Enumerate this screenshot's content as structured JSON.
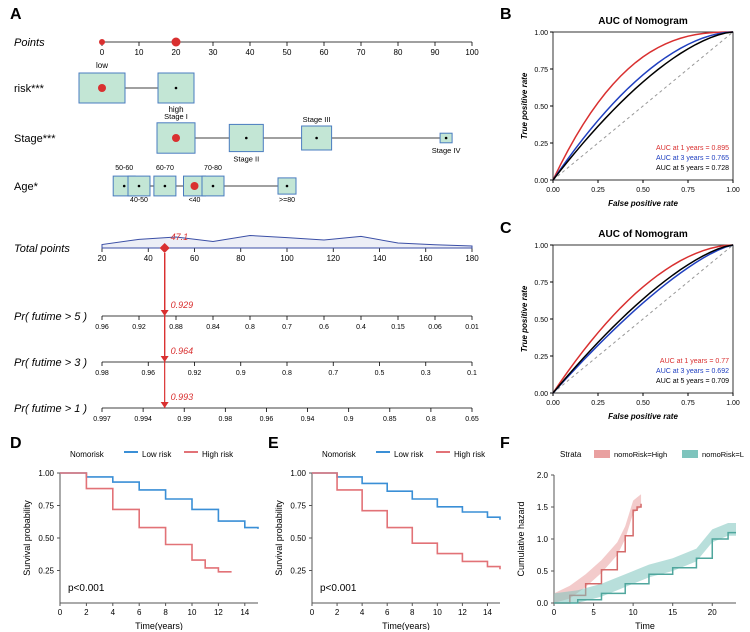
{
  "panels": {
    "A": "A",
    "B": "B",
    "C": "C",
    "D": "D",
    "E": "E",
    "F": "F"
  },
  "nomogram": {
    "rows": {
      "points": {
        "label": "Points",
        "italic": true
      },
      "risk": {
        "label": "risk***"
      },
      "stage": {
        "label": "Stage***"
      },
      "age": {
        "label": "Age*"
      },
      "total": {
        "label": "Total points",
        "italic": true
      },
      "pr5": {
        "label": "Pr( futime > 5 )",
        "italic": true
      },
      "pr3": {
        "label": "Pr( futime > 3 )",
        "italic": true
      },
      "pr1": {
        "label": "Pr( futime > 1 )",
        "italic": true
      }
    },
    "points_ticks": [
      0,
      10,
      20,
      30,
      40,
      50,
      60,
      70,
      80,
      90,
      100
    ],
    "risk_levels": {
      "low": "low",
      "high": "high"
    },
    "stage_levels": [
      "Stage I",
      "Stage II",
      "Stage III",
      "Stage IV"
    ],
    "age_levels": [
      "50-60",
      "40-50",
      "60-70",
      "<40",
      "70-80",
      ">=80"
    ],
    "total_ticks": [
      20,
      40,
      60,
      80,
      100,
      120,
      140,
      160,
      180
    ],
    "pr5_ticks": [
      0.96,
      0.92,
      0.88,
      0.84,
      0.8,
      0.7,
      0.6,
      0.4,
      0.15,
      0.06,
      0.01
    ],
    "pr3_ticks": [
      0.98,
      0.96,
      0.92,
      0.9,
      0.8,
      0.7,
      0.5,
      0.3,
      0.1
    ],
    "pr1_ticks": [
      0.997,
      0.994,
      0.99,
      0.98,
      0.96,
      0.94,
      0.9,
      0.85,
      0.8,
      0.65
    ],
    "marker_total": "47.1",
    "marker_pr5": "0.929",
    "marker_pr3": "0.964",
    "marker_pr1": "0.993",
    "colors": {
      "box_fill": "#c3e6d5",
      "box_stroke": "#4a7cc0",
      "marker": "#d93030",
      "density": "#3b4fa6"
    }
  },
  "rocB": {
    "title": "AUC of Nomogram",
    "xlabel": "False positive rate",
    "ylabel": "True positive rate",
    "lines": [
      {
        "label": "AUC at 1 years = 0.895",
        "color": "#d93030"
      },
      {
        "label": "AUC at 3 years = 0.765",
        "color": "#2040c0"
      },
      {
        "label": "AUC at 5 years = 0.728",
        "color": "#000000"
      }
    ],
    "xticks": [
      0.0,
      0.25,
      0.5,
      0.75,
      1.0
    ],
    "yticks": [
      0.0,
      0.25,
      0.5,
      0.75,
      1.0
    ]
  },
  "rocC": {
    "title": "AUC of Nomogram",
    "xlabel": "False positive rate",
    "ylabel": "True positive rate",
    "lines": [
      {
        "label": "AUC at 1 years = 0.77",
        "color": "#d93030"
      },
      {
        "label": "AUC at 3 years = 0.692",
        "color": "#2040c0"
      },
      {
        "label": "AUC at 5 years = 0.709",
        "color": "#000000"
      }
    ],
    "xticks": [
      0.0,
      0.25,
      0.5,
      0.75,
      1.0
    ],
    "yticks": [
      0.0,
      0.25,
      0.5,
      0.75,
      1.0
    ]
  },
  "kmD": {
    "legend_title": "Nomorisk",
    "low": "Low risk",
    "high": "High risk",
    "low_color": "#3a8fd6",
    "high_color": "#e27277",
    "xlabel": "Time(years)",
    "ylabel": "Survival probability",
    "pvalue": "p<0.001",
    "xticks": [
      0,
      2,
      4,
      6,
      8,
      10,
      12,
      14
    ],
    "yticks": [
      0.25,
      0.5,
      0.75,
      1.0
    ],
    "curve_low": [
      [
        0,
        1.0
      ],
      [
        2,
        0.97
      ],
      [
        4,
        0.93
      ],
      [
        6,
        0.87
      ],
      [
        8,
        0.8
      ],
      [
        10,
        0.72
      ],
      [
        12,
        0.63
      ],
      [
        14,
        0.58
      ],
      [
        15,
        0.57
      ]
    ],
    "curve_high": [
      [
        0,
        1.0
      ],
      [
        2,
        0.88
      ],
      [
        4,
        0.72
      ],
      [
        6,
        0.58
      ],
      [
        8,
        0.45
      ],
      [
        10,
        0.33
      ],
      [
        11,
        0.27
      ],
      [
        12,
        0.24
      ],
      [
        13,
        0.24
      ]
    ]
  },
  "kmE": {
    "legend_title": "Nomorisk",
    "low": "Low risk",
    "high": "High risk",
    "low_color": "#3a8fd6",
    "high_color": "#e27277",
    "xlabel": "Time(years)",
    "ylabel": "Survival probability",
    "pvalue": "p<0.001",
    "xticks": [
      0,
      2,
      4,
      6,
      8,
      10,
      12,
      14
    ],
    "yticks": [
      0.25,
      0.5,
      0.75,
      1.0
    ],
    "curve_low": [
      [
        0,
        1.0
      ],
      [
        2,
        0.97
      ],
      [
        4,
        0.92
      ],
      [
        6,
        0.86
      ],
      [
        8,
        0.8
      ],
      [
        10,
        0.74
      ],
      [
        12,
        0.7
      ],
      [
        14,
        0.66
      ],
      [
        15,
        0.64
      ]
    ],
    "curve_high": [
      [
        0,
        1.0
      ],
      [
        2,
        0.87
      ],
      [
        4,
        0.71
      ],
      [
        6,
        0.58
      ],
      [
        8,
        0.46
      ],
      [
        10,
        0.38
      ],
      [
        12,
        0.32
      ],
      [
        14,
        0.28
      ],
      [
        15,
        0.26
      ]
    ]
  },
  "hazF": {
    "legend_title": "Strata",
    "high": "nomoRisk=High",
    "low": "nomoRisk=Low",
    "high_color": "#e9a0a0",
    "low_color": "#7ec4bd",
    "high_line": "#d46a6a",
    "low_line": "#4fa69d",
    "xlabel": "Time",
    "ylabel": "Cumulative hazard",
    "xticks": [
      0,
      5,
      10,
      15,
      20
    ],
    "yticks": [
      0.0,
      0.5,
      1.0,
      1.5,
      2.0
    ],
    "curve_high": [
      [
        0,
        0
      ],
      [
        2,
        0.12
      ],
      [
        4,
        0.3
      ],
      [
        6,
        0.52
      ],
      [
        8,
        0.8
      ],
      [
        9,
        1.05
      ],
      [
        10,
        1.45
      ],
      [
        10.5,
        1.5
      ],
      [
        11,
        1.55
      ]
    ],
    "curve_low": [
      [
        0,
        0
      ],
      [
        3,
        0.05
      ],
      [
        6,
        0.15
      ],
      [
        9,
        0.3
      ],
      [
        12,
        0.45
      ],
      [
        15,
        0.55
      ],
      [
        18,
        0.7
      ],
      [
        20,
        1.0
      ],
      [
        22,
        1.1
      ],
      [
        23,
        1.1
      ]
    ]
  }
}
